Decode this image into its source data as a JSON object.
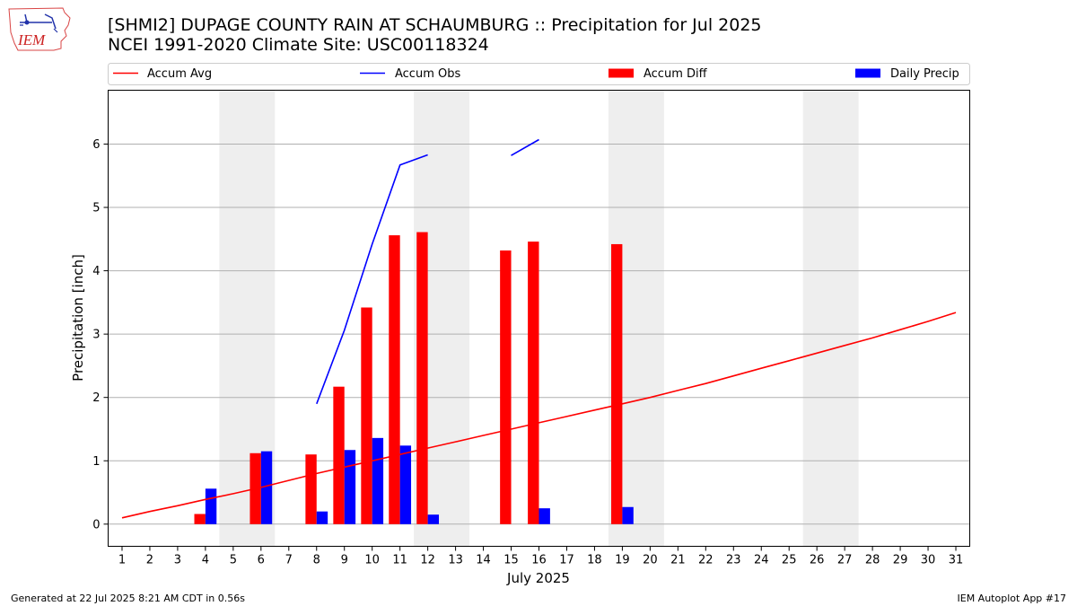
{
  "header": {
    "title_line1": "[SHMI2] DUPAGE COUNTY RAIN AT SCHAUMBURG :: Precipitation for Jul 2025",
    "title_line2": "NCEI 1991-2020 Climate Site: USC00118324",
    "logo_text": "IEM"
  },
  "footer": {
    "generated": "Generated at 22 Jul 2025 8:21 AM CDT in 0.56s",
    "app": "IEM Autoplot App #17"
  },
  "colors": {
    "accum_avg": "#ff0000",
    "accum_obs": "#0000ff",
    "accum_diff": "#ff0000",
    "daily_precip": "#0000ff",
    "weekend_shade": "#eeeeee",
    "grid": "#b0b0b0"
  },
  "chart_data": {
    "type": "bar",
    "xlabel": "July 2025",
    "ylabel": "Precipitation [inch]",
    "xlim": [
      0.5,
      31.5
    ],
    "ylim": [
      -0.35,
      6.85
    ],
    "yticks": [
      0,
      1,
      2,
      3,
      4,
      5,
      6
    ],
    "xticks": [
      1,
      2,
      3,
      4,
      5,
      6,
      7,
      8,
      9,
      10,
      11,
      12,
      13,
      14,
      15,
      16,
      17,
      18,
      19,
      20,
      21,
      22,
      23,
      24,
      25,
      26,
      27,
      28,
      29,
      30,
      31
    ],
    "grid": "horizontal",
    "legend_position": "top",
    "weekend_days": [
      5,
      6,
      12,
      13,
      19,
      20,
      26,
      27
    ],
    "series": [
      {
        "name": "Accum Avg",
        "type": "line",
        "x": [
          1,
          2,
          3,
          4,
          5,
          6,
          7,
          8,
          9,
          10,
          11,
          12,
          13,
          14,
          15,
          16,
          17,
          18,
          19,
          20,
          21,
          22,
          23,
          24,
          25,
          26,
          27,
          28,
          29,
          30,
          31
        ],
        "values": [
          0.1,
          0.2,
          0.29,
          0.39,
          0.48,
          0.58,
          0.69,
          0.8,
          0.9,
          1.0,
          1.1,
          1.2,
          1.3,
          1.4,
          1.5,
          1.6,
          1.7,
          1.8,
          1.9,
          2.0,
          2.11,
          2.22,
          2.34,
          2.46,
          2.58,
          2.7,
          2.82,
          2.94,
          3.07,
          3.2,
          3.34
        ]
      },
      {
        "name": "Accum Obs",
        "type": "line",
        "x": [
          8,
          9,
          10,
          11,
          12,
          13,
          14,
          15,
          16
        ],
        "values": [
          1.9,
          3.06,
          4.42,
          5.67,
          5.83,
          null,
          null,
          5.82,
          6.07
        ]
      },
      {
        "name": "Accum Diff",
        "type": "bar",
        "x": [
          4,
          6,
          8,
          9,
          10,
          11,
          12,
          15,
          16,
          19
        ],
        "values": [
          0.16,
          1.12,
          1.1,
          2.17,
          3.42,
          4.56,
          4.61,
          4.32,
          4.46,
          4.42
        ]
      },
      {
        "name": "Daily Precip",
        "type": "bar",
        "x": [
          4,
          6,
          8,
          9,
          10,
          11,
          12,
          16,
          19
        ],
        "values": [
          0.56,
          1.15,
          0.2,
          1.17,
          1.36,
          1.24,
          0.15,
          0.25,
          0.27
        ]
      }
    ]
  }
}
